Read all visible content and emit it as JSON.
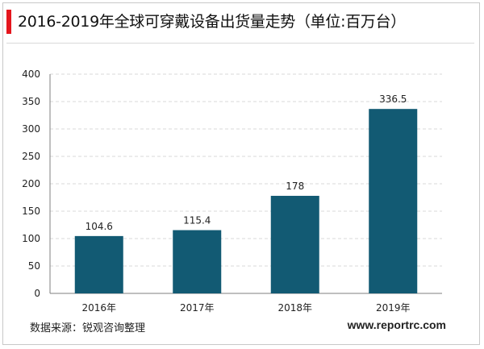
{
  "title": "2016-2019年全球可穿戴设备出货量走势（单位:百万台）",
  "source": "数据来源：锐观咨询整理",
  "website": "www.reportrc.com",
  "colors": {
    "bar": "#125a73",
    "accent": "#e4161d",
    "grid": "#d9d9d9"
  },
  "chart_data": {
    "type": "bar",
    "title": "2016-2019年全球可穿戴设备出货量走势（单位:百万台）",
    "categories": [
      "2016年",
      "2017年",
      "2018年",
      "2019年"
    ],
    "values": [
      104.6,
      115.4,
      178,
      336.5
    ],
    "data_labels": [
      "104.6",
      "115.4",
      "178",
      "336.5"
    ],
    "xlabel": "",
    "ylabel": "",
    "ylim": [
      0,
      400
    ],
    "yticks": [
      0,
      50,
      100,
      150,
      200,
      250,
      300,
      350,
      400
    ],
    "grid": true,
    "legend": "none"
  }
}
